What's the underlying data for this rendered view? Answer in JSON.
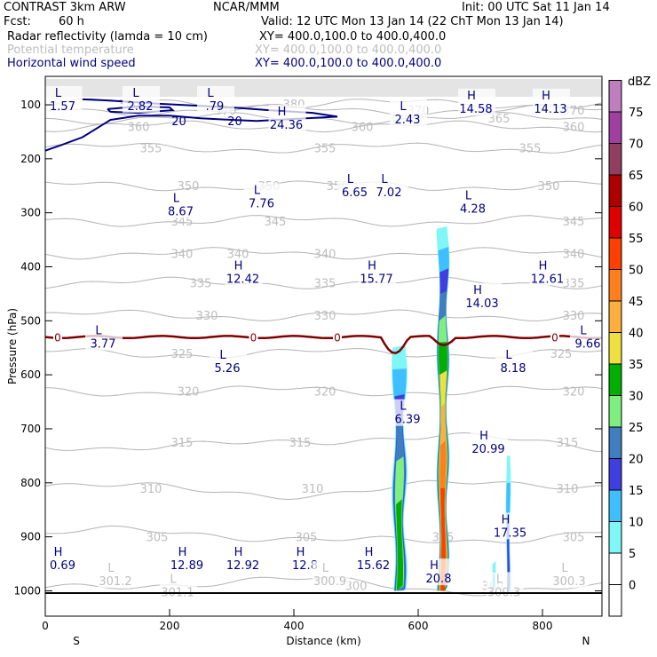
{
  "header": {
    "model": "CONTRAST  3km ARW",
    "org": "NCAR/MMM",
    "init": "Init: 00 UTC Sat 11 Jan 14",
    "fcst_label": "Fcst:",
    "fcst_value": "60 h",
    "valid": "Valid: 12 UTC Mon 13 Jan 14 (22 ChT Mon 13 Jan 14)",
    "fields": [
      {
        "label": "Radar reflectivity (lamda = 10 cm)",
        "xy": "XY=  400.0,100.0 to 400.0,400.0",
        "color": "#000000"
      },
      {
        "label": "Potential temperature",
        "xy": "XY=  400.0,100.0 to 400.0,400.0",
        "color": "#bdbdbd"
      },
      {
        "label": "Horizontal wind speed",
        "xy": "XY=  400.0,100.0 to 400.0,400.0",
        "color": "#000080"
      }
    ]
  },
  "chart_data": {
    "type": "cross-section",
    "ylabel": "Pressure (hPa)",
    "xlabel": "Distance (km)",
    "xlim": [
      0,
      900
    ],
    "ylim": [
      1050,
      50
    ],
    "x_ticks": [
      0,
      200,
      400,
      600,
      800
    ],
    "y_ticks": [
      100,
      200,
      300,
      400,
      500,
      600,
      700,
      800,
      900,
      1000
    ],
    "x_end_labels": {
      "left": "S",
      "right": "N"
    },
    "colorbar": {
      "unit": "dBZ",
      "levels": [
        0,
        5,
        10,
        15,
        20,
        25,
        30,
        35,
        40,
        45,
        50,
        55,
        60,
        65,
        70,
        75
      ],
      "colors": [
        "#ffffff",
        "#7ff7f7",
        "#3fbfff",
        "#3f3fdf",
        "#3f7fbf",
        "#7fef7f",
        "#00af00",
        "#efdf3f",
        "#ffaf3f",
        "#ff7f1f",
        "#ff3f00",
        "#df0000",
        "#af0000",
        "#903f5f",
        "#a03fa0",
        "#bf7fbf"
      ]
    },
    "theta_levels": [
      300,
      305,
      310,
      315,
      320,
      325,
      330,
      335,
      340,
      345,
      350,
      355,
      360,
      365,
      370,
      380
    ],
    "theta_label_color": "#bdbdbd",
    "wind_label_color": "#000080",
    "freezing_level": {
      "label": "0",
      "color": "#800000",
      "pressure_hPa": 530
    },
    "wind_contour_labels": [
      "20",
      "20"
    ],
    "wind_extrema": [
      {
        "type": "L",
        "value": "1.57",
        "x": 25,
        "p": 85
      },
      {
        "type": "L",
        "value": "2.82",
        "x": 150,
        "p": 85
      },
      {
        "type": "L",
        "value": ".79",
        "x": 270,
        "p": 85
      },
      {
        "type": "H",
        "value": "24.36",
        "x": 385,
        "p": 120
      },
      {
        "type": "L",
        "value": "2.43",
        "x": 580,
        "p": 110
      },
      {
        "type": "H",
        "value": "14.58",
        "x": 690,
        "p": 90
      },
      {
        "type": "H",
        "value": "14.13",
        "x": 810,
        "p": 90
      },
      {
        "type": "L",
        "value": "8.67",
        "x": 215,
        "p": 280
      },
      {
        "type": "L",
        "value": "7.76",
        "x": 345,
        "p": 265
      },
      {
        "type": "L",
        "value": "6.65",
        "x": 495,
        "p": 245
      },
      {
        "type": "L",
        "value": "7.02",
        "x": 550,
        "p": 245
      },
      {
        "type": "L",
        "value": "4.28",
        "x": 685,
        "p": 275
      },
      {
        "type": "H",
        "value": "12.42",
        "x": 315,
        "p": 405
      },
      {
        "type": "H",
        "value": "15.77",
        "x": 530,
        "p": 405
      },
      {
        "type": "H",
        "value": "14.03",
        "x": 700,
        "p": 450
      },
      {
        "type": "H",
        "value": "12.61",
        "x": 805,
        "p": 405
      },
      {
        "type": "L",
        "value": "3.77",
        "x": 90,
        "p": 525
      },
      {
        "type": "L",
        "value": "5.26",
        "x": 290,
        "p": 570
      },
      {
        "type": "L",
        "value": "8.18",
        "x": 750,
        "p": 570
      },
      {
        "type": "L",
        "value": "9.66",
        "x": 870,
        "p": 525
      },
      {
        "type": "L",
        "value": "6.39",
        "x": 580,
        "p": 665
      },
      {
        "type": "H",
        "value": "20.99",
        "x": 710,
        "p": 720
      },
      {
        "type": "H",
        "value": "17.35",
        "x": 745,
        "p": 875
      },
      {
        "type": "H",
        "value": "0.69",
        "x": 25,
        "p": 935
      },
      {
        "type": "H",
        "value": "12.89",
        "x": 225,
        "p": 935
      },
      {
        "type": "H",
        "value": "12.92",
        "x": 315,
        "p": 935
      },
      {
        "type": "H",
        "value": "12.8",
        "x": 415,
        "p": 935
      },
      {
        "type": "H",
        "value": "15.62",
        "x": 525,
        "p": 935
      },
      {
        "type": "H",
        "value": "20.8",
        "x": 630,
        "p": 960
      }
    ],
    "theta_extrema": [
      {
        "type": "L",
        "value": "301.2",
        "x": 110,
        "p": 965
      },
      {
        "type": "L",
        "value": "301.1",
        "x": 210,
        "p": 985
      },
      {
        "type": "L",
        "value": "300.9",
        "x": 455,
        "p": 965
      },
      {
        "type": "L",
        "value": "300.3",
        "x": 735,
        "p": 985
      },
      {
        "type": "L",
        "value": "300.3",
        "x": 840,
        "p": 965
      }
    ],
    "echoes": [
      {
        "x_center": 640,
        "half_width": 10,
        "p_top": 325,
        "p_bottom": 1000,
        "max_dbz": 50
      },
      {
        "x_center": 570,
        "half_width": 12,
        "p_top": 545,
        "p_bottom": 1000,
        "max_dbz": 30
      },
      {
        "x_center": 745,
        "half_width": 4,
        "p_top": 750,
        "p_bottom": 1000,
        "max_dbz": 15
      },
      {
        "x_center": 722,
        "half_width": 3,
        "p_top": 945,
        "p_bottom": 1000,
        "max_dbz": 10
      }
    ]
  }
}
